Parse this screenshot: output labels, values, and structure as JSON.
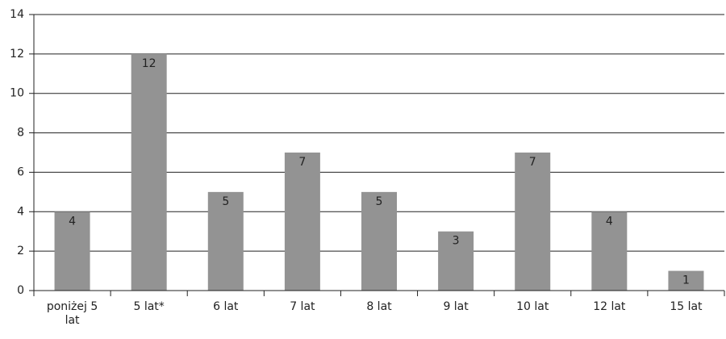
{
  "chart_data": {
    "type": "bar",
    "categories": [
      "poniżej 5 lat",
      "5 lat*",
      "6 lat",
      "7 lat",
      "8 lat",
      "9 lat",
      "10 lat",
      "12 lat",
      "15 lat"
    ],
    "values": [
      4,
      12,
      5,
      7,
      5,
      3,
      7,
      4,
      1
    ],
    "color": "#939393",
    "ylim": [
      0,
      14
    ],
    "yticks": [
      0,
      2,
      4,
      6,
      8,
      10,
      12,
      14
    ],
    "grid": true
  }
}
